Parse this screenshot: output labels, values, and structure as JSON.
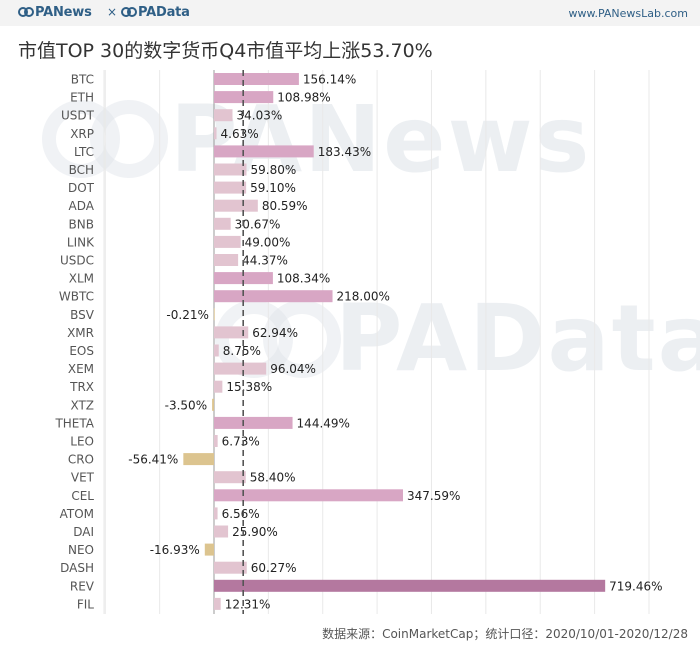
{
  "header": {
    "brand_primary": "PANews",
    "brand_separator": "×",
    "brand_secondary": "PAData",
    "site_url": "www.PANewsLab.com"
  },
  "title": "市值TOP 30的数字货币Q4市值平均上涨53.70%",
  "watermark": {
    "text_1": "PANews",
    "text_2": "PAData"
  },
  "colors": {
    "positive_light": "#e2c4d0",
    "positive_mid": "#d8a6c4",
    "positive_dark": "#b4789f",
    "negative": "#dcc48f",
    "grid": "#e9e9e9",
    "zero_line": "#555555"
  },
  "chart_data": {
    "type": "bar",
    "orientation": "horizontal",
    "title": "市值TOP 30的数字货币Q4市值平均上涨53.70%",
    "unit": "%",
    "categories": [
      "BTC",
      "ETH",
      "USDT",
      "XRP",
      "LTC",
      "BCH",
      "DOT",
      "ADA",
      "BNB",
      "LINK",
      "USDC",
      "XLM",
      "WBTC",
      "BSV",
      "XMR",
      "EOS",
      "XEM",
      "TRX",
      "XTZ",
      "THETA",
      "LEO",
      "CRO",
      "VET",
      "CEL",
      "ATOM",
      "DAI",
      "NEO",
      "DASH",
      "REV",
      "FIL"
    ],
    "values": [
      156.14,
      108.98,
      34.03,
      4.63,
      183.43,
      59.8,
      59.1,
      80.59,
      30.67,
      49.0,
      44.37,
      108.34,
      218.0,
      -0.21,
      62.94,
      8.75,
      96.04,
      15.38,
      -3.5,
      144.49,
      6.73,
      -56.41,
      58.4,
      347.59,
      6.56,
      25.9,
      -16.93,
      60.27,
      719.46,
      12.31
    ],
    "value_labels": [
      "156.14%",
      "108.98%",
      "34.03%",
      "4.63%",
      "183.43%",
      "59.80%",
      "59.10%",
      "80.59%",
      "30.67%",
      "49.00%",
      "44.37%",
      "108.34%",
      "218.00%",
      "-0.21%",
      "62.94%",
      "8.75%",
      "96.04%",
      "15.38%",
      "-3.50%",
      "144.49%",
      "6.73%",
      "-56.41%",
      "58.40%",
      "347.59%",
      "6.56%",
      "25.90%",
      "-16.93%",
      "60.27%",
      "719.46%",
      "12.31%"
    ],
    "average_line": 53.7,
    "xlim": [
      -200,
      800
    ],
    "grid": true,
    "legend": "none"
  },
  "footer": "数据来源：CoinMarketCap；统计口径：2020/10/01-2020/12/28"
}
